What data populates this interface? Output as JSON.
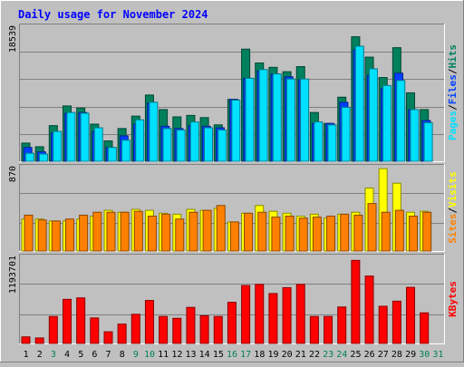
{
  "title": "Daily usage for November 2024",
  "colors": {
    "background": "#c0c0c0",
    "title": "#0000ff",
    "hits": "#00805c",
    "files": "#0040ff",
    "pages": "#00e0ff",
    "visits": "#ffff00",
    "sites": "#ff8000",
    "kbytes": "#ff0000",
    "day_normal": "#000000",
    "day_weekend": "#00805c",
    "separator": "#000000"
  },
  "legend": {
    "top": [
      {
        "text": "Pages",
        "color": "#00e0ff"
      },
      {
        "text": "/",
        "color": "#000000"
      },
      {
        "text": "Files",
        "color": "#0040ff"
      },
      {
        "text": "/",
        "color": "#000000"
      },
      {
        "text": "Hits",
        "color": "#00805c"
      }
    ],
    "middle": [
      {
        "text": "Sites",
        "color": "#ff8000"
      },
      {
        "text": "/",
        "color": "#000000"
      },
      {
        "text": "Visits",
        "color": "#ffff00"
      }
    ],
    "bottom": [
      {
        "text": "KBytes",
        "color": "#ff0000"
      }
    ]
  },
  "chart_data": [
    {
      "type": "bar",
      "title": "Daily usage for November 2024",
      "panel": "top",
      "max_label": "18539",
      "ylim": [
        0,
        18539
      ],
      "categories": [
        "1",
        "2",
        "3",
        "4",
        "5",
        "6",
        "7",
        "8",
        "9",
        "10",
        "11",
        "12",
        "13",
        "14",
        "15",
        "16",
        "17",
        "18",
        "19",
        "20",
        "21",
        "22",
        "23",
        "24",
        "25",
        "26",
        "27",
        "28",
        "29",
        "30",
        "31"
      ],
      "series": [
        {
          "name": "Hits",
          "values": [
            2500,
            2000,
            4900,
            7600,
            7300,
            5100,
            2800,
            4500,
            6200,
            9100,
            7100,
            6100,
            6300,
            6000,
            5000,
            8500,
            15400,
            13500,
            12900,
            12300,
            13000,
            6700,
            5200,
            8800,
            17100,
            14300,
            11500,
            15600,
            9400,
            7100,
            0
          ]
        },
        {
          "name": "Files",
          "values": [
            1900,
            1300,
            3900,
            6600,
            6700,
            4100,
            1900,
            3500,
            5100,
            8000,
            4800,
            4500,
            4900,
            4800,
            4600,
            8500,
            11400,
            12400,
            12000,
            11600,
            11200,
            5200,
            5200,
            8100,
            15300,
            11800,
            10000,
            12100,
            7100,
            5600,
            0
          ]
        },
        {
          "name": "Pages",
          "values": [
            1100,
            1000,
            4100,
            6700,
            6600,
            4600,
            1900,
            2900,
            5700,
            8100,
            4500,
            4300,
            5400,
            4600,
            4300,
            8400,
            11400,
            12600,
            12000,
            11300,
            11300,
            5400,
            5000,
            7400,
            15800,
            12700,
            10400,
            11100,
            7100,
            5300,
            0
          ]
        }
      ]
    },
    {
      "type": "bar",
      "panel": "middle",
      "max_label": "870",
      "ylim": [
        0,
        870
      ],
      "categories": [
        "1",
        "2",
        "3",
        "4",
        "5",
        "6",
        "7",
        "8",
        "9",
        "10",
        "11",
        "12",
        "13",
        "14",
        "15",
        "16",
        "17",
        "18",
        "19",
        "20",
        "21",
        "22",
        "23",
        "24",
        "25",
        "26",
        "27",
        "28",
        "29",
        "30",
        "31"
      ],
      "series": [
        {
          "name": "Visits",
          "values": [
            330,
            330,
            310,
            310,
            330,
            360,
            420,
            400,
            430,
            420,
            390,
            380,
            430,
            420,
            440,
            300,
            390,
            470,
            410,
            390,
            360,
            380,
            340,
            380,
            400,
            650,
            850,
            700,
            400,
            410,
            0
          ]
        },
        {
          "name": "Sites",
          "values": [
            370,
            320,
            310,
            330,
            370,
            400,
            400,
            400,
            410,
            360,
            380,
            330,
            400,
            420,
            470,
            300,
            390,
            400,
            350,
            360,
            340,
            350,
            360,
            380,
            370,
            490,
            400,
            420,
            360,
            400,
            0
          ]
        }
      ]
    },
    {
      "type": "bar",
      "panel": "bottom",
      "max_label": "1193701",
      "ylim": [
        0,
        1193701
      ],
      "categories": [
        "1",
        "2",
        "3",
        "4",
        "5",
        "6",
        "7",
        "8",
        "9",
        "10",
        "11",
        "12",
        "13",
        "14",
        "15",
        "16",
        "17",
        "18",
        "19",
        "20",
        "21",
        "22",
        "23",
        "24",
        "25",
        "26",
        "27",
        "28",
        "29",
        "30",
        "31"
      ],
      "series": [
        {
          "name": "KBytes",
          "values": [
            90000,
            75000,
            370000,
            605000,
            625000,
            350000,
            160000,
            265000,
            400000,
            590000,
            370000,
            345000,
            495000,
            380000,
            370000,
            565000,
            795000,
            810000,
            685000,
            765000,
            810000,
            370000,
            370000,
            500000,
            1140000,
            925000,
            510000,
            580000,
            770000,
            420000,
            0
          ]
        }
      ]
    }
  ],
  "day_labels": [
    {
      "text": "1",
      "weekend": false
    },
    {
      "text": "2",
      "weekend": false
    },
    {
      "text": "3",
      "weekend": true
    },
    {
      "text": "4",
      "weekend": false
    },
    {
      "text": "5",
      "weekend": false
    },
    {
      "text": "6",
      "weekend": false
    },
    {
      "text": "7",
      "weekend": false
    },
    {
      "text": "8",
      "weekend": false
    },
    {
      "text": "9",
      "weekend": true
    },
    {
      "text": "10",
      "weekend": true
    },
    {
      "text": "11",
      "weekend": false
    },
    {
      "text": "12",
      "weekend": false
    },
    {
      "text": "13",
      "weekend": false
    },
    {
      "text": "14",
      "weekend": false
    },
    {
      "text": "15",
      "weekend": false
    },
    {
      "text": "16",
      "weekend": true
    },
    {
      "text": "17",
      "weekend": true
    },
    {
      "text": "18",
      "weekend": false
    },
    {
      "text": "19",
      "weekend": false
    },
    {
      "text": "20",
      "weekend": false
    },
    {
      "text": "21",
      "weekend": false
    },
    {
      "text": "22",
      "weekend": false
    },
    {
      "text": "23",
      "weekend": true
    },
    {
      "text": "24",
      "weekend": true
    },
    {
      "text": "25",
      "weekend": false
    },
    {
      "text": "26",
      "weekend": false
    },
    {
      "text": "27",
      "weekend": false
    },
    {
      "text": "28",
      "weekend": false
    },
    {
      "text": "29",
      "weekend": false
    },
    {
      "text": "30",
      "weekend": true
    },
    {
      "text": "31",
      "weekend": true
    }
  ]
}
